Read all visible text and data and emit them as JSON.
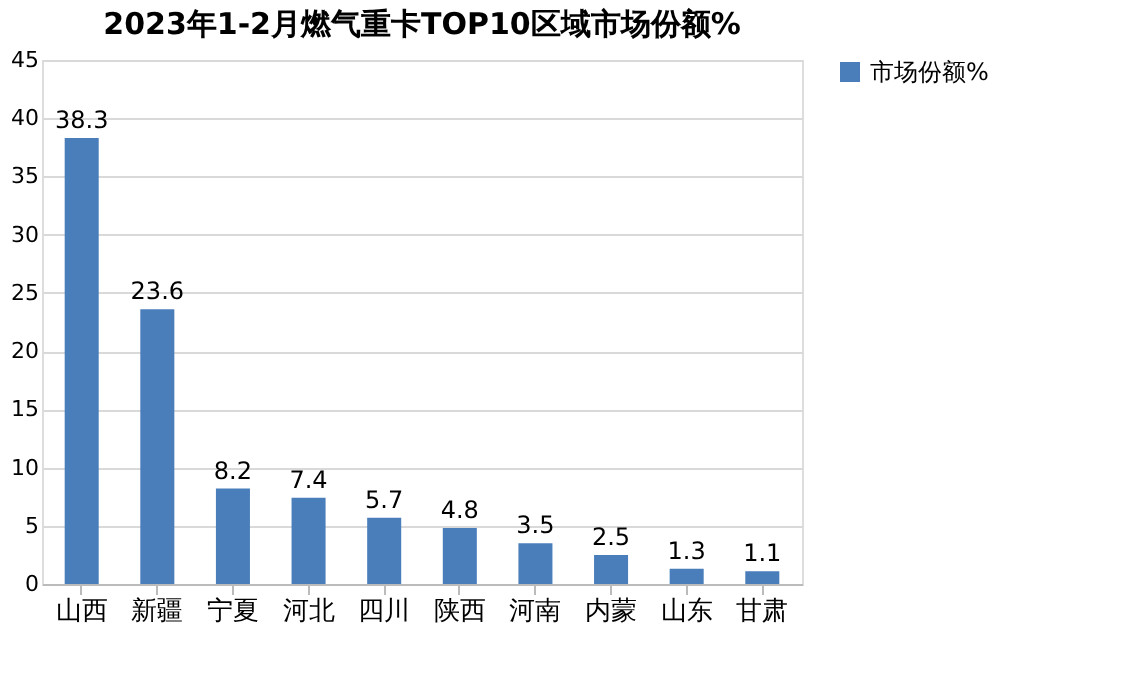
{
  "chart_data": {
    "type": "bar",
    "title": "2023年1-2月燃气重卡TOP10区域市场份额%",
    "categories": [
      "山西",
      "新疆",
      "宁夏",
      "河北",
      "四川",
      "陕西",
      "河南",
      "内蒙",
      "山东",
      "甘肃"
    ],
    "series": [
      {
        "name": "市场份额%",
        "color": "#4a7ebb",
        "values": [
          38.3,
          23.6,
          8.2,
          7.4,
          5.7,
          4.8,
          3.5,
          2.5,
          1.3,
          1.1
        ]
      }
    ],
    "ylim": [
      0,
      45
    ],
    "yticks": [
      0,
      5,
      10,
      15,
      20,
      25,
      30,
      35,
      40,
      45
    ],
    "grid": "y",
    "legend": "right",
    "data_labels": true
  }
}
